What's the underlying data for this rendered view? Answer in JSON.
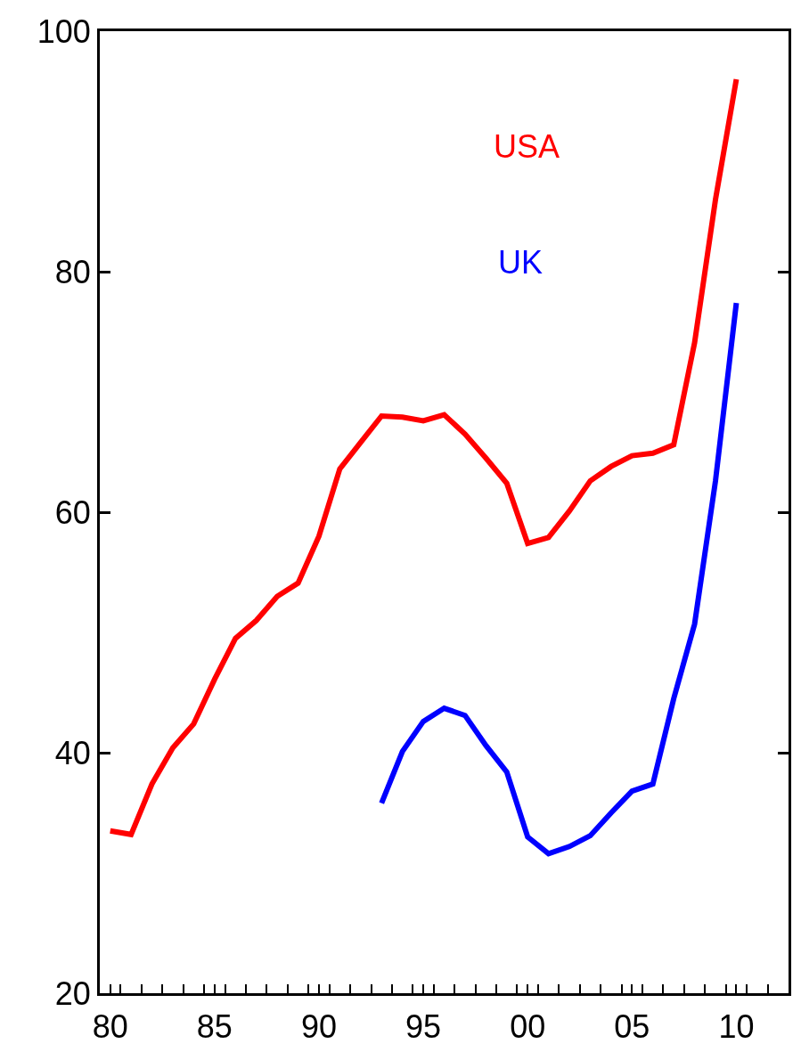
{
  "chart_data": {
    "type": "line",
    "x": [
      1980,
      1981,
      1982,
      1983,
      1984,
      1985,
      1986,
      1987,
      1988,
      1989,
      1990,
      1991,
      1992,
      1993,
      1994,
      1995,
      1996,
      1997,
      1998,
      1999,
      2000,
      2001,
      2002,
      2003,
      2004,
      2005,
      2006,
      2007,
      2008,
      2009,
      2010
    ],
    "series": [
      {
        "name": "USA",
        "color": "#ff0000",
        "values": [
          33.5,
          33.2,
          37.4,
          40.4,
          42.4,
          46.1,
          49.5,
          51,
          53,
          54.1,
          58,
          63.6,
          65.8,
          68,
          67.9,
          67.6,
          68.1,
          66.5,
          64.5,
          62.4,
          57.4,
          57.9,
          60.1,
          62.6,
          63.8,
          64.7,
          64.9,
          65.6,
          74.1,
          86,
          96
        ]
      },
      {
        "name": "UK",
        "color": "#0000ff",
        "values": [
          null,
          null,
          null,
          null,
          null,
          null,
          null,
          null,
          null,
          null,
          null,
          null,
          null,
          35.8,
          40.1,
          42.6,
          43.7,
          43.1,
          40.6,
          38.4,
          33,
          31.6,
          32.2,
          33.1,
          35,
          36.8,
          37.4,
          44.5,
          50.7,
          62.6,
          77.4
        ]
      }
    ],
    "xlim": [
      1979.5,
      2012.5
    ],
    "xticks": [
      {
        "value": 1980,
        "label": "80"
      },
      {
        "value": 1985,
        "label": "85"
      },
      {
        "value": 1990,
        "label": "90"
      },
      {
        "value": 1995,
        "label": "95"
      },
      {
        "value": 2000,
        "label": "00"
      },
      {
        "value": 2005,
        "label": "05"
      },
      {
        "value": 2010,
        "label": "10"
      },
      {
        "value": 1980.5,
        "label": null
      },
      {
        "value": 1981.5,
        "label": null
      },
      {
        "value": 1982.5,
        "label": null
      },
      {
        "value": 1983.5,
        "label": null
      },
      {
        "value": 1984.5,
        "label": null
      },
      {
        "value": 1985.5,
        "label": null
      },
      {
        "value": 1986.5,
        "label": null
      },
      {
        "value": 1987.5,
        "label": null
      },
      {
        "value": 1988.5,
        "label": null
      },
      {
        "value": 1989.5,
        "label": null
      },
      {
        "value": 1990.5,
        "label": null
      },
      {
        "value": 1991.5,
        "label": null
      },
      {
        "value": 1992.5,
        "label": null
      },
      {
        "value": 1993.5,
        "label": null
      },
      {
        "value": 1994.5,
        "label": null
      },
      {
        "value": 1995.5,
        "label": null
      },
      {
        "value": 1996.5,
        "label": null
      },
      {
        "value": 1997.5,
        "label": null
      },
      {
        "value": 1998.5,
        "label": null
      },
      {
        "value": 1999.5,
        "label": null
      },
      {
        "value": 2000.5,
        "label": null
      },
      {
        "value": 2001.5,
        "label": null
      },
      {
        "value": 2002.5,
        "label": null
      },
      {
        "value": 2003.5,
        "label": null
      },
      {
        "value": 2004.5,
        "label": null
      },
      {
        "value": 2005.5,
        "label": null
      },
      {
        "value": 2006.5,
        "label": null
      },
      {
        "value": 2007.5,
        "label": null
      },
      {
        "value": 2008.5,
        "label": null
      },
      {
        "value": 2009.5,
        "label": null
      },
      {
        "value": 2010.5,
        "label": null
      },
      {
        "value": 2011.5,
        "label": null
      }
    ],
    "ylim": [
      20,
      100
    ],
    "yticks": [
      20,
      40,
      60,
      80,
      100
    ],
    "grid": false,
    "legend": false,
    "marker": "none",
    "line_style": "solid"
  }
}
